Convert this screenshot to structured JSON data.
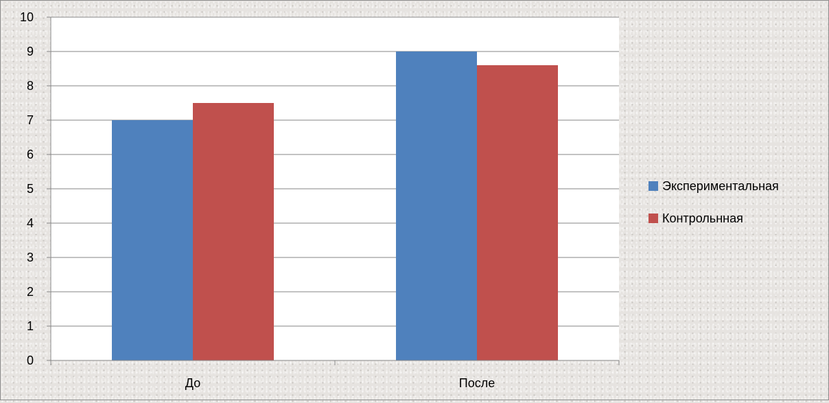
{
  "chart_data": {
    "type": "bar",
    "title": "",
    "xlabel": "",
    "ylabel": "",
    "categories": [
      "До",
      "После"
    ],
    "series": [
      {
        "name": "Экспериментальная",
        "values": [
          7,
          9
        ],
        "color": "#4f81bd"
      },
      {
        "name": "Контрольнная",
        "values": [
          7.5,
          8.6
        ],
        "color": "#c0504d"
      }
    ],
    "ylim": [
      0,
      10
    ],
    "yticks": [
      "0",
      "1",
      "2",
      "3",
      "4",
      "5",
      "6",
      "7",
      "8",
      "9",
      "10"
    ],
    "grid": true,
    "legend_position": "right",
    "plot_background": "#ffffff",
    "gridline_color": "#868686"
  }
}
